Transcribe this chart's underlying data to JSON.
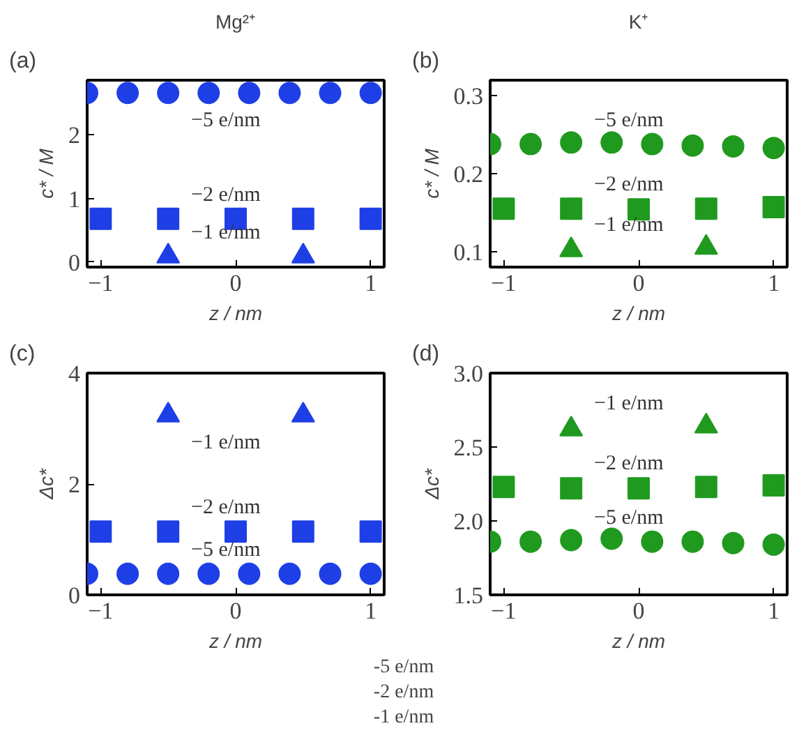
{
  "chart_data": [
    {
      "type": "scatter",
      "title": "Mg²⁺",
      "xlabel": "z / nm",
      "ylabel": "c* / M",
      "xlim": [
        -1.1,
        1.1
      ],
      "xticks": [
        -1,
        0,
        1
      ],
      "ylim": [
        -0.08,
        2.86
      ],
      "yticks": [
        0,
        1,
        2
      ],
      "grid": false,
      "annotations": [
        "(a)",
        "−5 e/nm",
        "−2 e/nm",
        "−1 e/nm"
      ],
      "series": [
        {
          "color": "#1f3fe6",
          "marker": "circle",
          "x": [
            -1.1,
            -0.8,
            -0.5,
            -0.2,
            0.1,
            0.4,
            0.7,
            1.0
          ],
          "values": [
            2.66,
            2.66,
            2.66,
            2.66,
            2.66,
            2.66,
            2.66,
            2.66
          ]
        },
        {
          "color": "#1f3fe6",
          "marker": "square",
          "x": [
            -1,
            -0.5,
            0,
            0.5,
            1
          ],
          "values": [
            0.68,
            0.68,
            0.68,
            0.68,
            0.68
          ]
        },
        {
          "color": "#1f3fe6",
          "marker": "triangle",
          "x": [
            -0.5,
            0.5
          ],
          "values": [
            0.09,
            0.09
          ]
        }
      ]
    },
    {
      "type": "scatter",
      "title": "K⁺",
      "xlabel": "z / nm",
      "ylabel": "c* / M",
      "xlim": [
        -1.1,
        1.1
      ],
      "xticks": [
        -1,
        0,
        1
      ],
      "ylim": [
        0.08,
        0.32
      ],
      "yticks": [
        0.1,
        0.2,
        0.3
      ],
      "grid": false,
      "annotations": [
        "(b)",
        "−5 e/nm",
        "−2 e/nm",
        "−1 e/nm"
      ],
      "series": [
        {
          "color": "#1f9a1f",
          "marker": "circle",
          "x": [
            -1.1,
            -0.8,
            -0.5,
            -0.2,
            0.1,
            0.4,
            0.7,
            1.0
          ],
          "values": [
            0.238,
            0.238,
            0.24,
            0.24,
            0.238,
            0.236,
            0.235,
            0.233
          ]
        },
        {
          "color": "#1f9a1f",
          "marker": "square",
          "x": [
            -1,
            -0.5,
            0,
            0.5,
            1
          ],
          "values": [
            0.155,
            0.155,
            0.154,
            0.155,
            0.157
          ]
        },
        {
          "color": "#1f9a1f",
          "marker": "triangle",
          "x": [
            -0.5,
            0.5
          ],
          "values": [
            0.102,
            0.105
          ]
        }
      ]
    },
    {
      "type": "scatter",
      "xlabel": "z / nm",
      "ylabel": "Δc*",
      "xlim": [
        -1.1,
        1.1
      ],
      "xticks": [
        -1,
        0,
        1
      ],
      "ylim": [
        0,
        4
      ],
      "yticks": [
        0,
        2,
        4
      ],
      "grid": false,
      "annotations": [
        "(c)",
        "−5 e/nm",
        "−2 e/nm",
        "−1 e/nm"
      ],
      "series": [
        {
          "color": "#1f3fe6",
          "marker": "circle",
          "x": [
            -1.1,
            -0.8,
            -0.5,
            -0.2,
            0.1,
            0.4,
            0.7,
            1.0
          ],
          "values": [
            0.38,
            0.38,
            0.38,
            0.38,
            0.38,
            0.38,
            0.38,
            0.38
          ]
        },
        {
          "color": "#1f3fe6",
          "marker": "square",
          "x": [
            -1,
            -0.5,
            0,
            0.5,
            1
          ],
          "values": [
            1.14,
            1.14,
            1.14,
            1.14,
            1.14
          ]
        },
        {
          "color": "#1f3fe6",
          "marker": "triangle",
          "x": [
            -0.5,
            0.5
          ],
          "values": [
            3.24,
            3.24
          ]
        }
      ]
    },
    {
      "type": "scatter",
      "xlabel": "z / nm",
      "ylabel": "Δc*",
      "xlim": [
        -1.1,
        1.1
      ],
      "xticks": [
        -1,
        0,
        1
      ],
      "ylim": [
        1.5,
        3.0
      ],
      "yticks": [
        1.5,
        {
          "value": 2,
          "label": "2.0"
        },
        2.5,
        {
          "value": 3,
          "label": "3.0"
        }
      ],
      "grid": false,
      "annotations": [
        "(d)",
        "−5 e/nm",
        "−2 e/nm",
        "−1 e/nm"
      ],
      "series": [
        {
          "color": "#1f9a1f",
          "marker": "circle",
          "x": [
            -1.1,
            -0.8,
            -0.5,
            -0.2,
            0.1,
            0.4,
            0.7,
            1.0
          ],
          "values": [
            1.86,
            1.86,
            1.87,
            1.88,
            1.86,
            1.86,
            1.85,
            1.84
          ]
        },
        {
          "color": "#1f9a1f",
          "marker": "square",
          "x": [
            -1,
            -0.5,
            0,
            0.5,
            1
          ],
          "values": [
            2.23,
            2.22,
            2.22,
            2.23,
            2.24
          ]
        },
        {
          "color": "#1f9a1f",
          "marker": "triangle",
          "x": [
            -0.5,
            0.5
          ],
          "values": [
            2.62,
            2.64
          ]
        }
      ]
    },
    {
      "type": "other",
      "annotations": [
        "-5 e/nm",
        "-2 e/nm",
        "-1 e/nm"
      ]
    }
  ]
}
